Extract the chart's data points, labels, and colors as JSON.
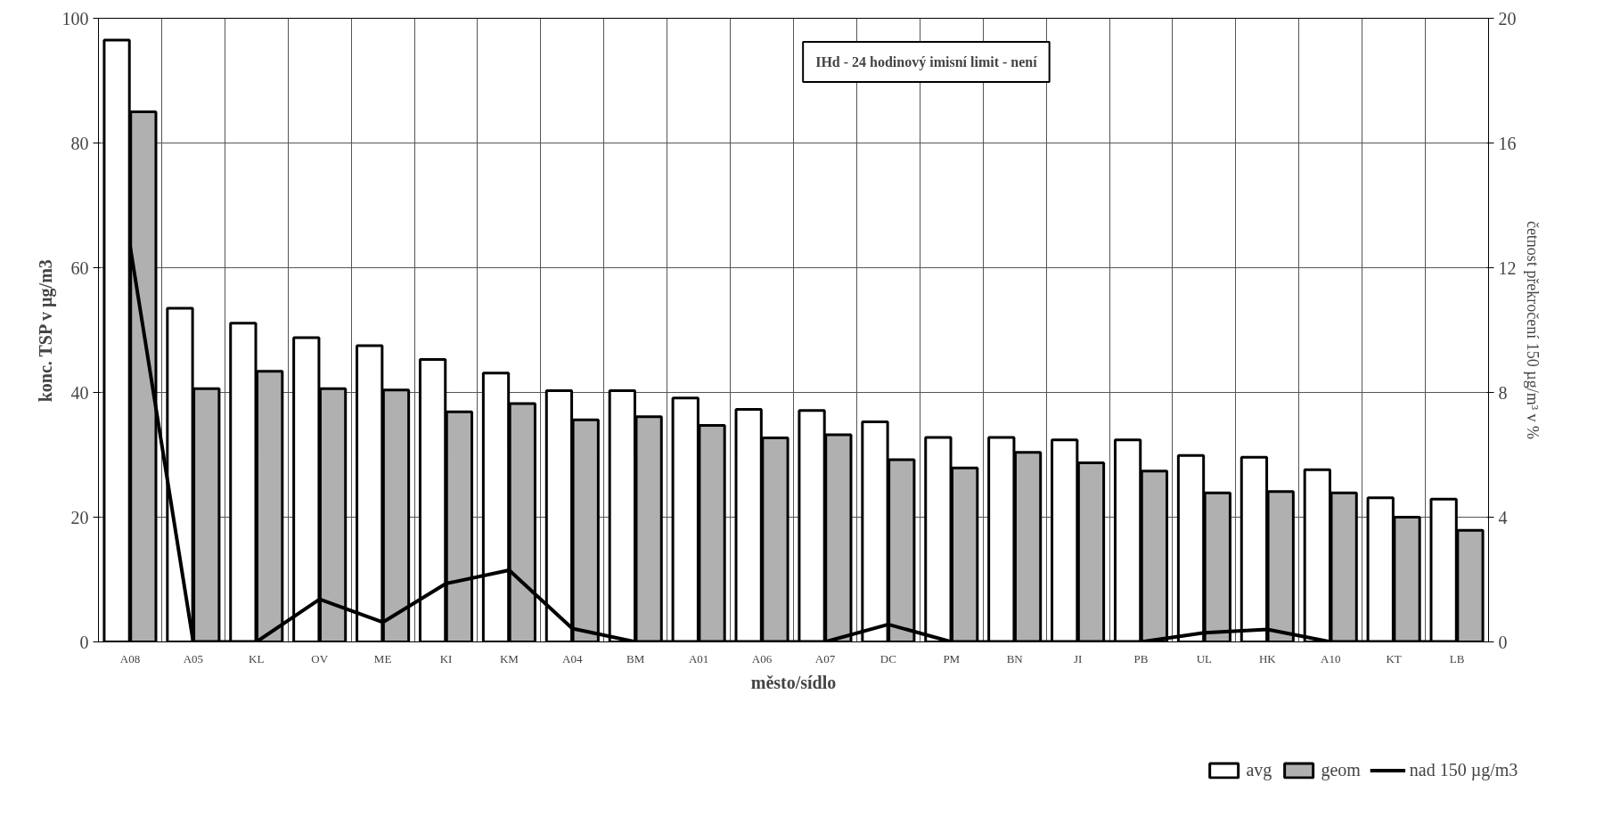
{
  "chart_data": {
    "type": "bar",
    "xlabel": "město/sídlo",
    "ylabel": "konc. TSP v µg/m3",
    "y2label": "četnost překročení 150 µg/m³ v %",
    "annotations": [
      "IHd - 24 hodinový imisní limit - není"
    ],
    "categories": [
      "A08",
      "A05",
      "KL",
      "OV",
      "ME",
      "KI",
      "KM",
      "A04",
      "BM",
      "A01",
      "A06",
      "A07",
      "DC",
      "PM",
      "BN",
      "JI",
      "PB",
      "UL",
      "HK",
      "A10",
      "KT",
      "LB"
    ],
    "series": [
      {
        "name": "avg",
        "color": "#ffffff",
        "values": [
          96.5,
          53.5,
          51.1,
          48.8,
          47.5,
          45.3,
          43.1,
          40.3,
          40.3,
          39.1,
          37.3,
          37.1,
          35.3,
          32.8,
          32.8,
          32.4,
          32.4,
          29.9,
          29.6,
          27.6,
          23.1,
          22.9
        ]
      },
      {
        "name": "geom",
        "color": "#b0b0b0",
        "values": [
          85.0,
          40.6,
          43.4,
          40.6,
          40.4,
          36.9,
          38.2,
          35.6,
          36.1,
          34.7,
          32.7,
          33.2,
          29.2,
          27.9,
          30.4,
          28.7,
          27.4,
          23.9,
          24.1,
          23.9,
          20.0,
          17.9
        ]
      },
      {
        "name": "nad 150 µg/m3",
        "type": "line",
        "axis": "y2",
        "color": "#000000",
        "values": [
          12.7,
          0,
          0,
          1.37,
          0.63,
          1.87,
          2.3,
          0.43,
          0,
          0,
          0,
          0,
          0.56,
          0,
          0,
          0,
          0,
          0.29,
          0.4,
          0,
          0,
          0
        ]
      }
    ],
    "ylim": [
      0,
      100
    ],
    "yticks": [
      0,
      20,
      40,
      60,
      80,
      100
    ],
    "y2lim": [
      0,
      20
    ],
    "y2ticks": [
      0,
      4,
      8,
      12,
      16,
      20
    ],
    "grid": true,
    "legend": "bottom right",
    "marker": "none",
    "line_style": "solid"
  }
}
